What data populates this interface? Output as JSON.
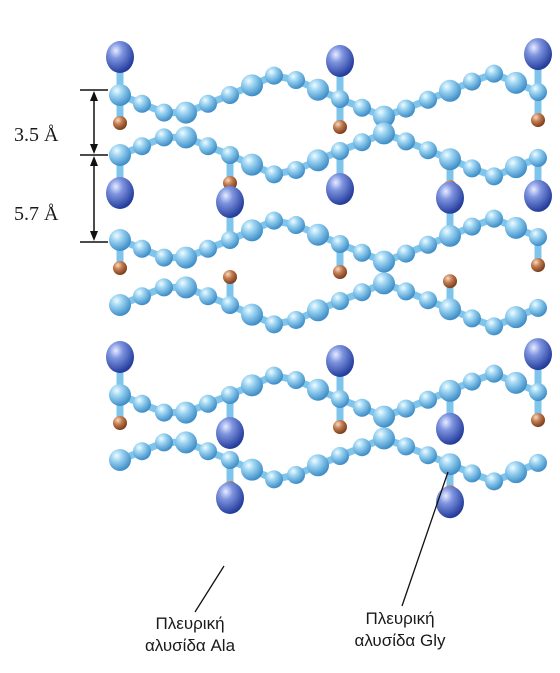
{
  "dimensions": {
    "top_spacing": "3.5 Å",
    "bottom_spacing": "5.7 Å"
  },
  "callouts": {
    "ala": {
      "line1": "Πλευρική",
      "line2": "αλυσίδα Ala"
    },
    "gly": {
      "line1": "Πλευρική",
      "line2": "αλυσίδα Gly"
    }
  },
  "colors": {
    "backbone": "#7fc4ea",
    "backbone_dark": "#3f8ec8",
    "ala_atom": "#3d5fc2",
    "gly_atom": "#b3693f",
    "dimension_line": "#111111"
  }
}
